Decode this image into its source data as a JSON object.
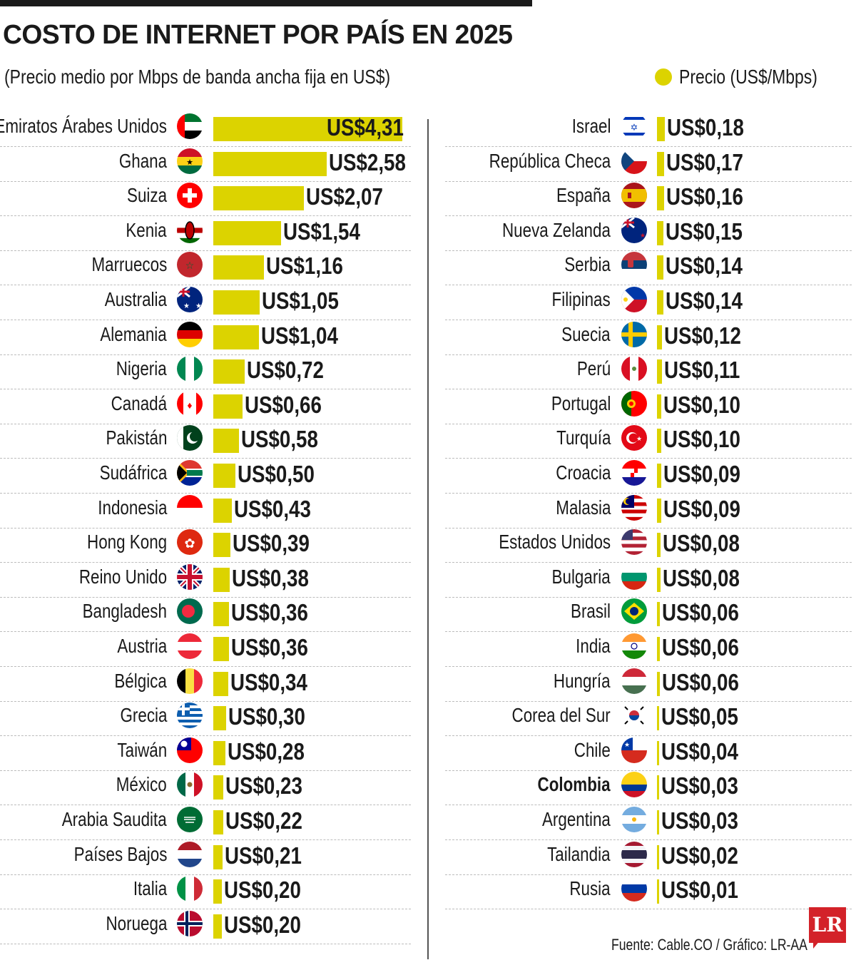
{
  "header": {
    "title": "COSTO DE INTERNET POR PAÍS EN 2025",
    "subtitle": "(Precio medio por Mbps de banda ancha fija en US$)",
    "legend_label": "Precio (US$/Mbps)"
  },
  "colors": {
    "bar": "#dcd300",
    "text": "#1a1a1a",
    "rule": "#1a1a1a",
    "logo": "#d32229"
  },
  "chart_data": {
    "type": "bar",
    "orientation": "horizontal",
    "series": [
      {
        "name": "Precio (US$/Mbps)"
      }
    ],
    "ylabel": "Precio medio por Mbps de banda ancha fija en US$",
    "grid": false,
    "legend": "top-right",
    "columns": [
      {
        "xlim": [
          0,
          4.31
        ],
        "rows": [
          {
            "country": "Emiratos Árabes Unidos",
            "value": 4.31,
            "label": "US$4,31",
            "flag": "ae"
          },
          {
            "country": "Ghana",
            "value": 2.58,
            "label": "US$2,58",
            "flag": "gh"
          },
          {
            "country": "Suiza",
            "value": 2.07,
            "label": "US$2,07",
            "flag": "ch"
          },
          {
            "country": "Kenia",
            "value": 1.54,
            "label": "US$1,54",
            "flag": "ke"
          },
          {
            "country": "Marruecos",
            "value": 1.16,
            "label": "US$1,16",
            "flag": "ma"
          },
          {
            "country": "Australia",
            "value": 1.05,
            "label": "US$1,05",
            "flag": "au"
          },
          {
            "country": "Alemania",
            "value": 1.04,
            "label": "US$1,04",
            "flag": "de"
          },
          {
            "country": "Nigeria",
            "value": 0.72,
            "label": "US$0,72",
            "flag": "ng"
          },
          {
            "country": "Canadá",
            "value": 0.66,
            "label": "US$0,66",
            "flag": "ca"
          },
          {
            "country": "Pakistán",
            "value": 0.58,
            "label": "US$0,58",
            "flag": "pk"
          },
          {
            "country": "Sudáfrica",
            "value": 0.5,
            "label": "US$0,50",
            "flag": "za"
          },
          {
            "country": "Indonesia",
            "value": 0.43,
            "label": "US$0,43",
            "flag": "id"
          },
          {
            "country": "Hong Kong",
            "value": 0.39,
            "label": "US$0,39",
            "flag": "hk"
          },
          {
            "country": "Reino Unido",
            "value": 0.38,
            "label": "US$0,38",
            "flag": "gb"
          },
          {
            "country": "Bangladesh",
            "value": 0.36,
            "label": "US$0,36",
            "flag": "bd"
          },
          {
            "country": "Austria",
            "value": 0.36,
            "label": "US$0,36",
            "flag": "at"
          },
          {
            "country": "Bélgica",
            "value": 0.34,
            "label": "US$0,34",
            "flag": "be"
          },
          {
            "country": "Grecia",
            "value": 0.3,
            "label": "US$0,30",
            "flag": "gr"
          },
          {
            "country": "Taiwán",
            "value": 0.28,
            "label": "US$0,28",
            "flag": "tw"
          },
          {
            "country": "México",
            "value": 0.23,
            "label": "US$0,23",
            "flag": "mx"
          },
          {
            "country": "Arabia Saudita",
            "value": 0.22,
            "label": "US$0,22",
            "flag": "sa"
          },
          {
            "country": "Países Bajos",
            "value": 0.21,
            "label": "US$0,21",
            "flag": "nl"
          },
          {
            "country": "Italia",
            "value": 0.2,
            "label": "US$0,20",
            "flag": "it"
          },
          {
            "country": "Noruega",
            "value": 0.2,
            "label": "US$0,20",
            "flag": "no"
          }
        ]
      },
      {
        "xlim": [
          0,
          4.31
        ],
        "rows": [
          {
            "country": "Israel",
            "value": 0.18,
            "label": "US$0,18",
            "flag": "il"
          },
          {
            "country": "República Checa",
            "value": 0.17,
            "label": "US$0,17",
            "flag": "cz"
          },
          {
            "country": "España",
            "value": 0.16,
            "label": "US$0,16",
            "flag": "es"
          },
          {
            "country": "Nueva Zelanda",
            "value": 0.15,
            "label": "US$0,15",
            "flag": "nz"
          },
          {
            "country": "Serbia",
            "value": 0.14,
            "label": "US$0,14",
            "flag": "rs"
          },
          {
            "country": "Filipinas",
            "value": 0.14,
            "label": "US$0,14",
            "flag": "ph"
          },
          {
            "country": "Suecia",
            "value": 0.12,
            "label": "US$0,12",
            "flag": "se"
          },
          {
            "country": "Perú",
            "value": 0.11,
            "label": "US$0,11",
            "flag": "pe"
          },
          {
            "country": "Portugal",
            "value": 0.1,
            "label": "US$0,10",
            "flag": "pt"
          },
          {
            "country": "Turquía",
            "value": 0.1,
            "label": "US$0,10",
            "flag": "tr"
          },
          {
            "country": "Croacia",
            "value": 0.09,
            "label": "US$0,09",
            "flag": "hr"
          },
          {
            "country": "Malasia",
            "value": 0.09,
            "label": "US$0,09",
            "flag": "my"
          },
          {
            "country": "Estados Unidos",
            "value": 0.08,
            "label": "US$0,08",
            "flag": "us"
          },
          {
            "country": "Bulgaria",
            "value": 0.08,
            "label": "US$0,08",
            "flag": "bg"
          },
          {
            "country": "Brasil",
            "value": 0.06,
            "label": "US$0,06",
            "flag": "br"
          },
          {
            "country": "India",
            "value": 0.06,
            "label": "US$0,06",
            "flag": "in"
          },
          {
            "country": "Hungría",
            "value": 0.06,
            "label": "US$0,06",
            "flag": "hu"
          },
          {
            "country": "Corea del Sur",
            "value": 0.05,
            "label": "US$0,05",
            "flag": "kr"
          },
          {
            "country": "Chile",
            "value": 0.04,
            "label": "US$0,04",
            "flag": "cl"
          },
          {
            "country": "Colombia",
            "value": 0.03,
            "label": "US$0,03",
            "flag": "co",
            "highlight": true
          },
          {
            "country": "Argentina",
            "value": 0.03,
            "label": "US$0,03",
            "flag": "ar"
          },
          {
            "country": "Tailandia",
            "value": 0.02,
            "label": "US$0,02",
            "flag": "th"
          },
          {
            "country": "Rusia",
            "value": 0.01,
            "label": "US$0,01",
            "flag": "ru"
          }
        ]
      }
    ]
  },
  "footer": {
    "source": "Fuente: Cable.CO / Gráfico: LR-AA",
    "logo_text": "LR"
  }
}
